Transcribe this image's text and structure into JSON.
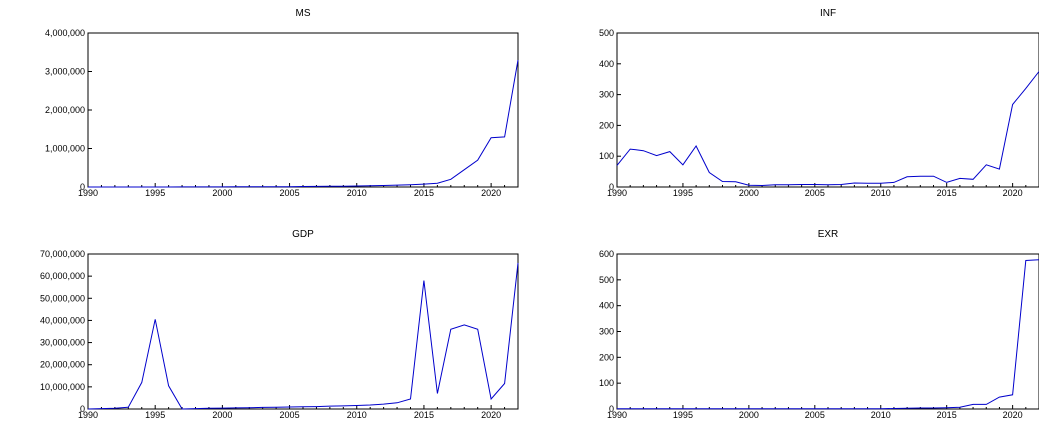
{
  "chart_data": [
    {
      "type": "line",
      "title": "MS",
      "xlabel": "",
      "ylabel": "",
      "xlim": [
        1990,
        2022
      ],
      "ylim": [
        0,
        4000000
      ],
      "x_ticks": [
        "1990",
        "1995",
        "2000",
        "2005",
        "2010",
        "2015",
        "2020"
      ],
      "y_ticks": [
        "0",
        "1,000,000",
        "2,000,000",
        "3,000,000",
        "4,000,000"
      ],
      "grid": false,
      "line_color": "#0000cc",
      "x": [
        1990,
        1991,
        1992,
        1993,
        1994,
        1995,
        1996,
        1997,
        1998,
        1999,
        2000,
        2001,
        2002,
        2003,
        2004,
        2005,
        2006,
        2007,
        2008,
        2009,
        2010,
        2011,
        2012,
        2013,
        2014,
        2015,
        2016,
        2017,
        2018,
        2019,
        2020,
        2021,
        2022
      ],
      "values": [
        0,
        0,
        0,
        0,
        0,
        0,
        1000,
        1500,
        2000,
        2500,
        3000,
        4000,
        5000,
        6000,
        7000,
        9000,
        12000,
        15000,
        18000,
        20000,
        25000,
        30000,
        40000,
        50000,
        60000,
        75000,
        100000,
        200000,
        450000,
        700000,
        1280000,
        1300000,
        3300000
      ]
    },
    {
      "type": "line",
      "title": "INF",
      "xlabel": "",
      "ylabel": "",
      "xlim": [
        1990,
        2022
      ],
      "ylim": [
        0,
        500
      ],
      "x_ticks": [
        "1990",
        "1995",
        "2000",
        "2005",
        "2010",
        "2015",
        "2020"
      ],
      "y_ticks": [
        "0",
        "100",
        "200",
        "300",
        "400",
        "500"
      ],
      "grid": false,
      "line_color": "#0000cc",
      "x": [
        1990,
        1991,
        1992,
        1993,
        1994,
        1995,
        1996,
        1997,
        1998,
        1999,
        2000,
        2001,
        2002,
        2003,
        2004,
        2005,
        2006,
        2007,
        2008,
        2009,
        2010,
        2011,
        2012,
        2013,
        2014,
        2015,
        2016,
        2017,
        2018,
        2019,
        2020,
        2021,
        2022
      ],
      "values": [
        70,
        123,
        118,
        102,
        115,
        72,
        133,
        47,
        18,
        17,
        6,
        5,
        7,
        7,
        8,
        8,
        7,
        8,
        13,
        12,
        12,
        15,
        33,
        35,
        35,
        15,
        28,
        25,
        72,
        58,
        268,
        320,
        375
      ]
    },
    {
      "type": "line",
      "title": "GDP",
      "xlabel": "",
      "ylabel": "",
      "xlim": [
        1990,
        2022
      ],
      "ylim": [
        0,
        70000000
      ],
      "x_ticks": [
        "1990",
        "1995",
        "2000",
        "2005",
        "2010",
        "2015",
        "2020"
      ],
      "y_ticks": [
        "0",
        "10,000,000",
        "20,000,000",
        "30,000,000",
        "40,000,000",
        "50,000,000",
        "60,000,000",
        "70,000,000"
      ],
      "grid": false,
      "line_color": "#0000cc",
      "x": [
        1990,
        1991,
        1992,
        1993,
        1994,
        1995,
        1996,
        1997,
        1998,
        1999,
        2000,
        2001,
        2002,
        2003,
        2004,
        2005,
        2006,
        2007,
        2008,
        2009,
        2010,
        2011,
        2012,
        2013,
        2014,
        2015,
        2016,
        2017,
        2018,
        2019,
        2020,
        2021,
        2022
      ],
      "values": [
        0,
        200000,
        300000,
        800000,
        12000000,
        40500000,
        10500000,
        0,
        200000,
        300000,
        400000,
        500000,
        600000,
        700000,
        800000,
        900000,
        1000000,
        1100000,
        1300000,
        1400000,
        1600000,
        1800000,
        2200000,
        2800000,
        4500000,
        58000000,
        7000000,
        36000000,
        38000000,
        36000000,
        4500000,
        11500000,
        66000000
      ]
    },
    {
      "type": "line",
      "title": "EXR",
      "xlabel": "",
      "ylabel": "",
      "xlim": [
        1990,
        2022
      ],
      "ylim": [
        0,
        600
      ],
      "x_ticks": [
        "1990",
        "1995",
        "2000",
        "2005",
        "2010",
        "2015",
        "2020"
      ],
      "y_ticks": [
        "0",
        "100",
        "200",
        "300",
        "400",
        "500",
        "600"
      ],
      "grid": false,
      "line_color": "#0000cc",
      "x": [
        1990,
        1991,
        1992,
        1993,
        1994,
        1995,
        1996,
        1997,
        1998,
        1999,
        2000,
        2001,
        2002,
        2003,
        2004,
        2005,
        2006,
        2007,
        2008,
        2009,
        2010,
        2011,
        2012,
        2013,
        2014,
        2015,
        2016,
        2017,
        2018,
        2019,
        2020,
        2021,
        2022
      ],
      "values": [
        1,
        1,
        1,
        1,
        1,
        1,
        1,
        1,
        1,
        1,
        1,
        1,
        1,
        1,
        1,
        1,
        1,
        1,
        1,
        1,
        1,
        2,
        3,
        4,
        4,
        5,
        7,
        18,
        18,
        46,
        55,
        575,
        578
      ]
    }
  ]
}
